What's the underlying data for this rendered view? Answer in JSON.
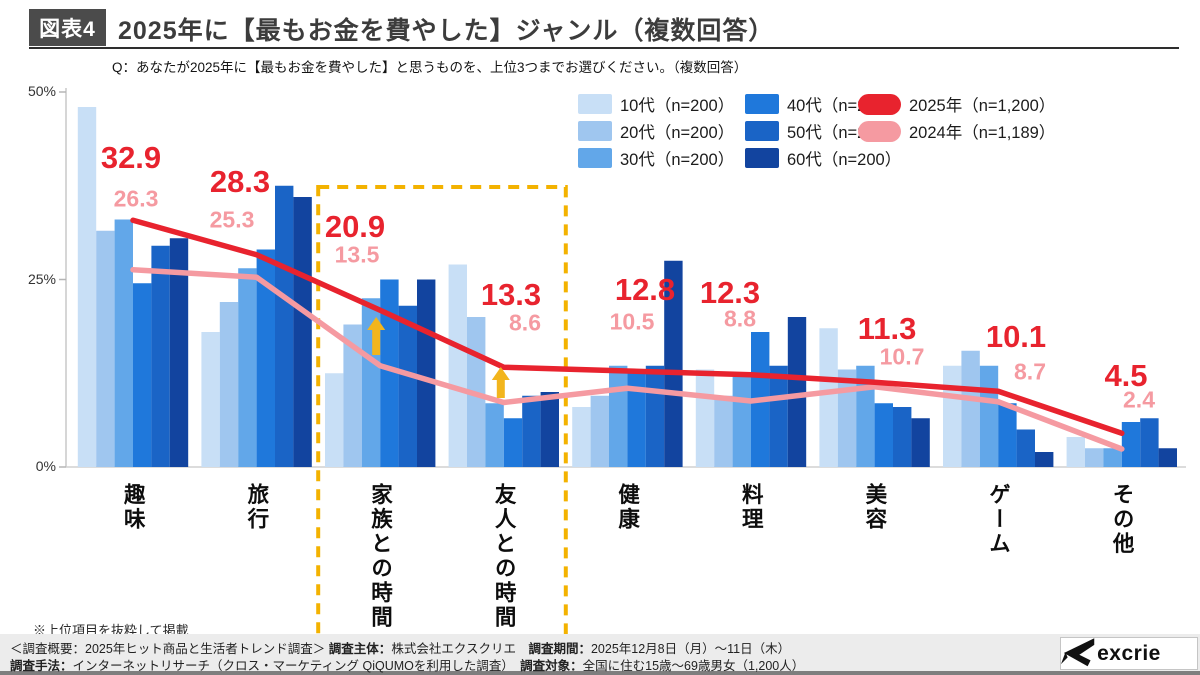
{
  "header": {
    "badge": "図表4",
    "title": "2025年に【最もお金を費やした】ジャンル（複数回答）",
    "question": "Q：あなたが2025年に【最もお金を費やした】と思うものを、上位3つまでお選びください。（複数回答）"
  },
  "legend": {
    "age_items": [
      {
        "label": "10代（n=200）",
        "color": "#c8dff6"
      },
      {
        "label": "20代（n=200）",
        "color": "#9fc6ef"
      },
      {
        "label": "30代（n=200）",
        "color": "#62a7e9"
      },
      {
        "label": "40代（n=200）",
        "color": "#1f78db"
      },
      {
        "label": "50代（n=200）",
        "color": "#1a64c6"
      },
      {
        "label": "60代（n=200）",
        "color": "#12449f"
      }
    ],
    "year_items": [
      {
        "label": "2025年（n=1,200）",
        "color": "#e8232e"
      },
      {
        "label": "2024年（n=1,189）",
        "color": "#f59aa1"
      }
    ]
  },
  "chart_data": {
    "type": "bar+line",
    "title": "2025年に【最もお金を費やした】ジャンル（複数回答）",
    "categories": [
      "趣味",
      "旅行",
      "家族との時間",
      "友人との時間",
      "健康",
      "料理",
      "美容",
      "ゲーム",
      "その他"
    ],
    "bar_series": [
      {
        "name": "10代（n=200）",
        "color": "#c8dff6",
        "values": [
          48,
          18,
          12.5,
          27,
          8,
          13,
          18.5,
          13.5,
          4
        ]
      },
      {
        "name": "20代（n=200）",
        "color": "#9fc6ef",
        "values": [
          31.5,
          22,
          19,
          20,
          9.5,
          9.5,
          13,
          15.5,
          2.5
        ]
      },
      {
        "name": "30代（n=200）",
        "color": "#62a7e9",
        "values": [
          33,
          26.5,
          22.5,
          8.5,
          13.5,
          12,
          13.5,
          13.5,
          2.5
        ]
      },
      {
        "name": "40代（n=200）",
        "color": "#1f78db",
        "values": [
          24.5,
          29,
          25,
          6.5,
          13,
          18,
          8.5,
          8.5,
          6
        ]
      },
      {
        "name": "50代（n=200）",
        "color": "#1a64c6",
        "values": [
          29.5,
          37.5,
          21.5,
          9.5,
          13.5,
          13.5,
          8,
          5,
          6.5
        ]
      },
      {
        "name": "60代（n=200）",
        "color": "#12449f",
        "values": [
          30.5,
          36,
          25,
          10,
          27.5,
          20,
          6.5,
          2,
          2.5
        ]
      }
    ],
    "line_series": [
      {
        "name": "2025年（n=1,200）",
        "color": "#e8232e",
        "values": [
          32.9,
          28.3,
          20.9,
          13.3,
          12.8,
          12.3,
          11.3,
          10.1,
          4.5
        ]
      },
      {
        "name": "2024年（n=1,189）",
        "color": "#f59aa1",
        "values": [
          26.3,
          25.3,
          13.5,
          8.6,
          10.5,
          8.8,
          10.7,
          8.7,
          2.4
        ]
      }
    ],
    "yticks": [
      {
        "value": 50,
        "label": "50%"
      },
      {
        "value": 25,
        "label": "25%"
      },
      {
        "value": 0,
        "label": "0%"
      }
    ],
    "ylim": [
      0,
      50
    ],
    "grid": false,
    "legend_position": "top-right",
    "highlight_box_categories": [
      "家族との時間",
      "友人との時間"
    ],
    "highlight_color": "#f3b200",
    "annotations": [
      {
        "type": "up-arrow",
        "category": "家族との時間",
        "color": "#f2b51d"
      },
      {
        "type": "up-arrow",
        "category": "友人との時間",
        "color": "#f2b51d"
      }
    ]
  },
  "note": "※上位項目を抜粋して掲載",
  "footer": {
    "line1": [
      {
        "text": "＜調査概要：2025年ヒット商品と生活者トレンド調査＞ ",
        "bold": false
      },
      {
        "text": "調査主体：",
        "bold": true
      },
      {
        "text": "株式会社エクスクリエ　",
        "bold": false
      },
      {
        "text": "調査期間：",
        "bold": true
      },
      {
        "text": "2025年12月8日（月）〜11日（木）",
        "bold": false
      }
    ],
    "line2": [
      {
        "text": "調査手法：",
        "bold": true
      },
      {
        "text": "インターネットリサーチ（クロス・マーケティング QiQUMOを利用した調査）　",
        "bold": false
      },
      {
        "text": "調査対象：",
        "bold": true
      },
      {
        "text": "全国に住む15歳〜69歳男女（1,200人）",
        "bold": false
      }
    ],
    "logo_text": "excrie"
  }
}
